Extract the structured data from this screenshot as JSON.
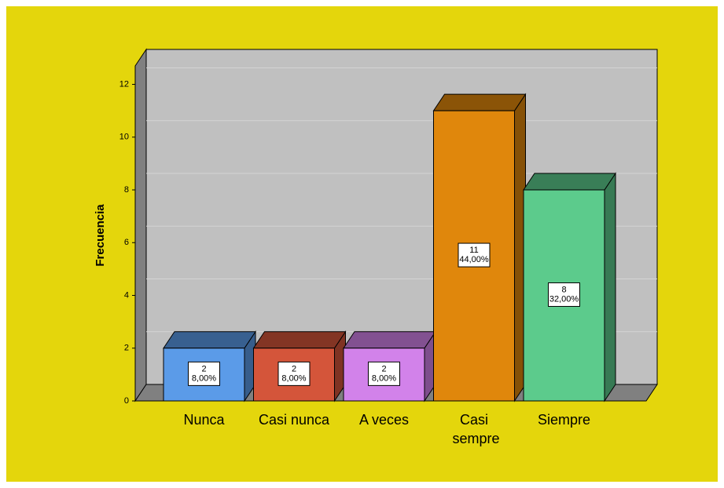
{
  "chart_data": {
    "type": "bar3d",
    "y_label": "Frecuencia",
    "categories": [
      "Nunca",
      "Casi nunca",
      "A veces",
      "Casi sempre",
      "Siempre"
    ],
    "values": [
      2,
      2,
      2,
      11,
      8
    ],
    "percentages": [
      8,
      8,
      8,
      44,
      32
    ],
    "percentage_labels": [
      "8,00%",
      "8,00%",
      "8,00%",
      "44,00%",
      "32,00%"
    ],
    "colors": [
      "#5b9be8",
      "#d4553a",
      "#d282ea",
      "#e0870c",
      "#5ccb8c"
    ],
    "ylim": [
      0,
      12.7
    ],
    "yticks": [
      0,
      2,
      4,
      6,
      8,
      10,
      12
    ],
    "grid": true
  }
}
